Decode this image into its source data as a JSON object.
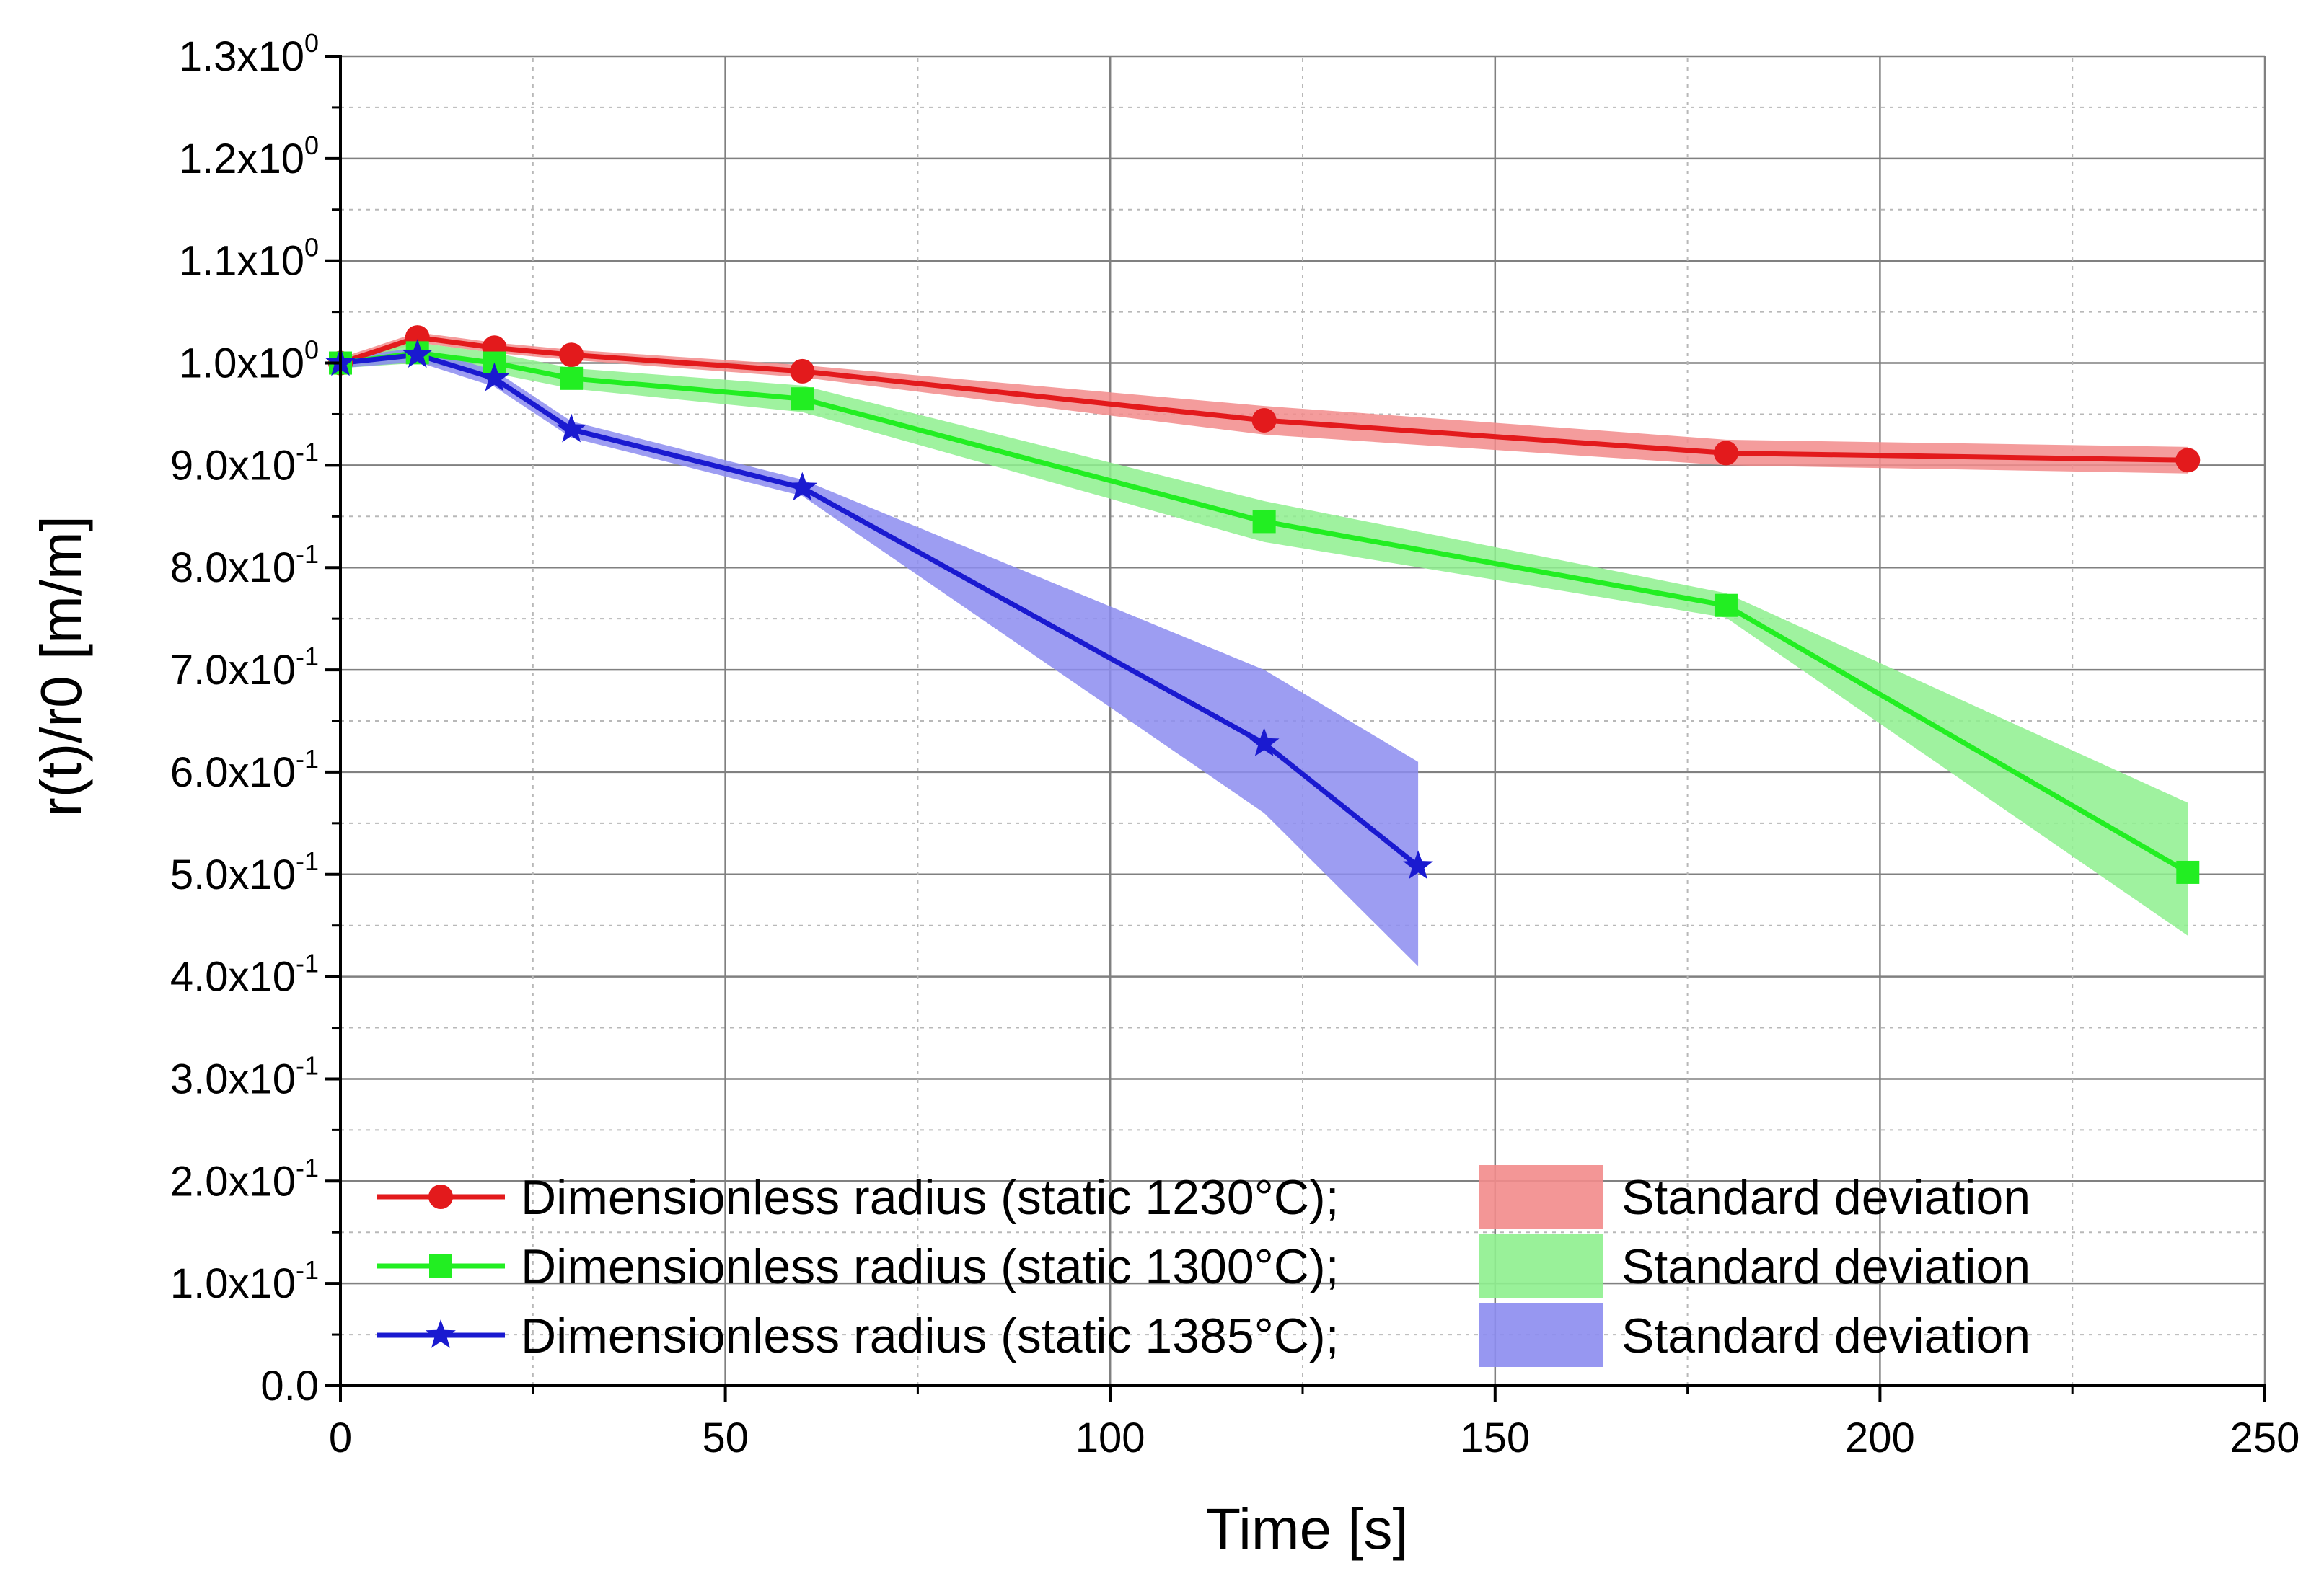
{
  "chart_data": {
    "type": "line",
    "title": "",
    "xlabel": "Time [s]",
    "ylabel": "r(t)/r0 [m/m]",
    "xlim": [
      0,
      250
    ],
    "ylim": [
      0,
      1.3
    ],
    "x_ticks": [
      {
        "value": 0,
        "label": "0"
      },
      {
        "value": 50,
        "label": "50"
      },
      {
        "value": 100,
        "label": "100"
      },
      {
        "value": 150,
        "label": "150"
      },
      {
        "value": 200,
        "label": "200"
      },
      {
        "value": 250,
        "label": "250"
      }
    ],
    "y_ticks": [
      {
        "value": 0,
        "mantissa": "0.0",
        "exp": ""
      },
      {
        "value": 0.1,
        "mantissa": "1.0x10",
        "exp": "-1"
      },
      {
        "value": 0.2,
        "mantissa": "2.0x10",
        "exp": "-1"
      },
      {
        "value": 0.3,
        "mantissa": "3.0x10",
        "exp": "-1"
      },
      {
        "value": 0.4,
        "mantissa": "4.0x10",
        "exp": "-1"
      },
      {
        "value": 0.5,
        "mantissa": "5.0x10",
        "exp": "-1"
      },
      {
        "value": 0.6,
        "mantissa": "6.0x10",
        "exp": "-1"
      },
      {
        "value": 0.7,
        "mantissa": "7.0x10",
        "exp": "-1"
      },
      {
        "value": 0.8,
        "mantissa": "8.0x10",
        "exp": "-1"
      },
      {
        "value": 0.9,
        "mantissa": "9.0x10",
        "exp": "-1"
      },
      {
        "value": 1.0,
        "mantissa": "1.0x10",
        "exp": "0"
      },
      {
        "value": 1.1,
        "mantissa": "1.1x10",
        "exp": "0"
      },
      {
        "value": 1.2,
        "mantissa": "1.2x10",
        "exp": "0"
      },
      {
        "value": 1.3,
        "mantissa": "1.3x10",
        "exp": "0"
      }
    ],
    "grid": true,
    "legend_position": "bottom-left",
    "series": [
      {
        "name": "Dimensionless radius (static 1230°C);",
        "band_name": "Standard deviation",
        "color": "#e31a1c",
        "band_color": "#f28b8b",
        "marker": "circle",
        "x": [
          0,
          10,
          20,
          30,
          60,
          120,
          180,
          240
        ],
        "values": [
          1.0,
          1.025,
          1.015,
          1.008,
          0.992,
          0.944,
          0.912,
          0.905
        ],
        "upper": [
          1.005,
          1.03,
          1.02,
          1.013,
          0.998,
          0.958,
          0.925,
          0.918
        ],
        "lower": [
          0.995,
          1.02,
          1.01,
          1.003,
          0.986,
          0.93,
          0.9,
          0.892
        ]
      },
      {
        "name": "Dimensionless radius (static 1300°C);",
        "band_name": "Standard deviation",
        "color": "#22ee22",
        "band_color": "#8ef08e",
        "marker": "square",
        "x": [
          0,
          10,
          20,
          30,
          60,
          120,
          180,
          240
        ],
        "values": [
          1.0,
          1.01,
          1.0,
          0.985,
          0.965,
          0.845,
          0.763,
          0.502
        ],
        "upper": [
          1.005,
          1.02,
          1.01,
          0.995,
          0.978,
          0.865,
          0.775,
          0.57
        ],
        "lower": [
          0.995,
          1.0,
          0.99,
          0.975,
          0.952,
          0.825,
          0.751,
          0.44
        ]
      },
      {
        "name": "Dimensionless radius (static 1385°C);",
        "band_name": "Standard deviation",
        "color": "#1a1ad0",
        "band_color": "#8c8cf0",
        "marker": "star",
        "x": [
          0,
          10,
          20,
          30,
          60,
          120,
          140
        ],
        "values": [
          1.0,
          1.008,
          0.985,
          0.935,
          0.878,
          0.628,
          0.508
        ],
        "upper": [
          1.005,
          1.015,
          0.993,
          0.943,
          0.886,
          0.7,
          0.61
        ],
        "lower": [
          0.995,
          1.001,
          0.977,
          0.927,
          0.87,
          0.56,
          0.41
        ]
      }
    ]
  }
}
